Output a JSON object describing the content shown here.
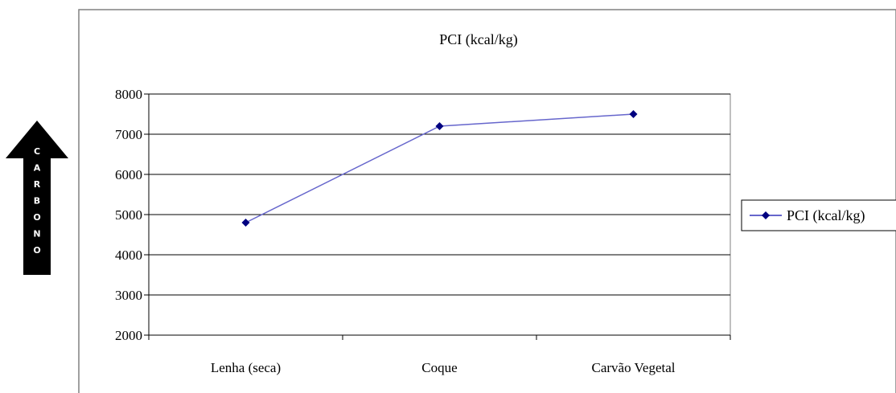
{
  "side_arrow": {
    "label": "CARBONO",
    "letters": [
      "C",
      "A",
      "R",
      "B",
      "O",
      "N",
      "O"
    ],
    "color": "#000000",
    "text_color": "#ffffff"
  },
  "chart_data": {
    "type": "line",
    "title": "PCI (kcal/kg)",
    "xlabel": "",
    "ylabel": "",
    "categories": [
      "Lenha (seca)",
      "Coque",
      "Carvão Vegetal"
    ],
    "series": [
      {
        "name": "PCI (kcal/kg)",
        "values": [
          4800,
          7200,
          7500
        ],
        "color": "#6666cc",
        "marker_color": "#000080",
        "marker": "diamond"
      }
    ],
    "ylim": [
      2000,
      8000
    ],
    "yticks": [
      2000,
      3000,
      4000,
      5000,
      6000,
      7000,
      8000
    ],
    "ytick_labels": [
      "2000",
      "3000",
      "4000",
      "5000",
      "6000",
      "7000",
      "8000"
    ],
    "grid": true,
    "legend_position": "right"
  }
}
